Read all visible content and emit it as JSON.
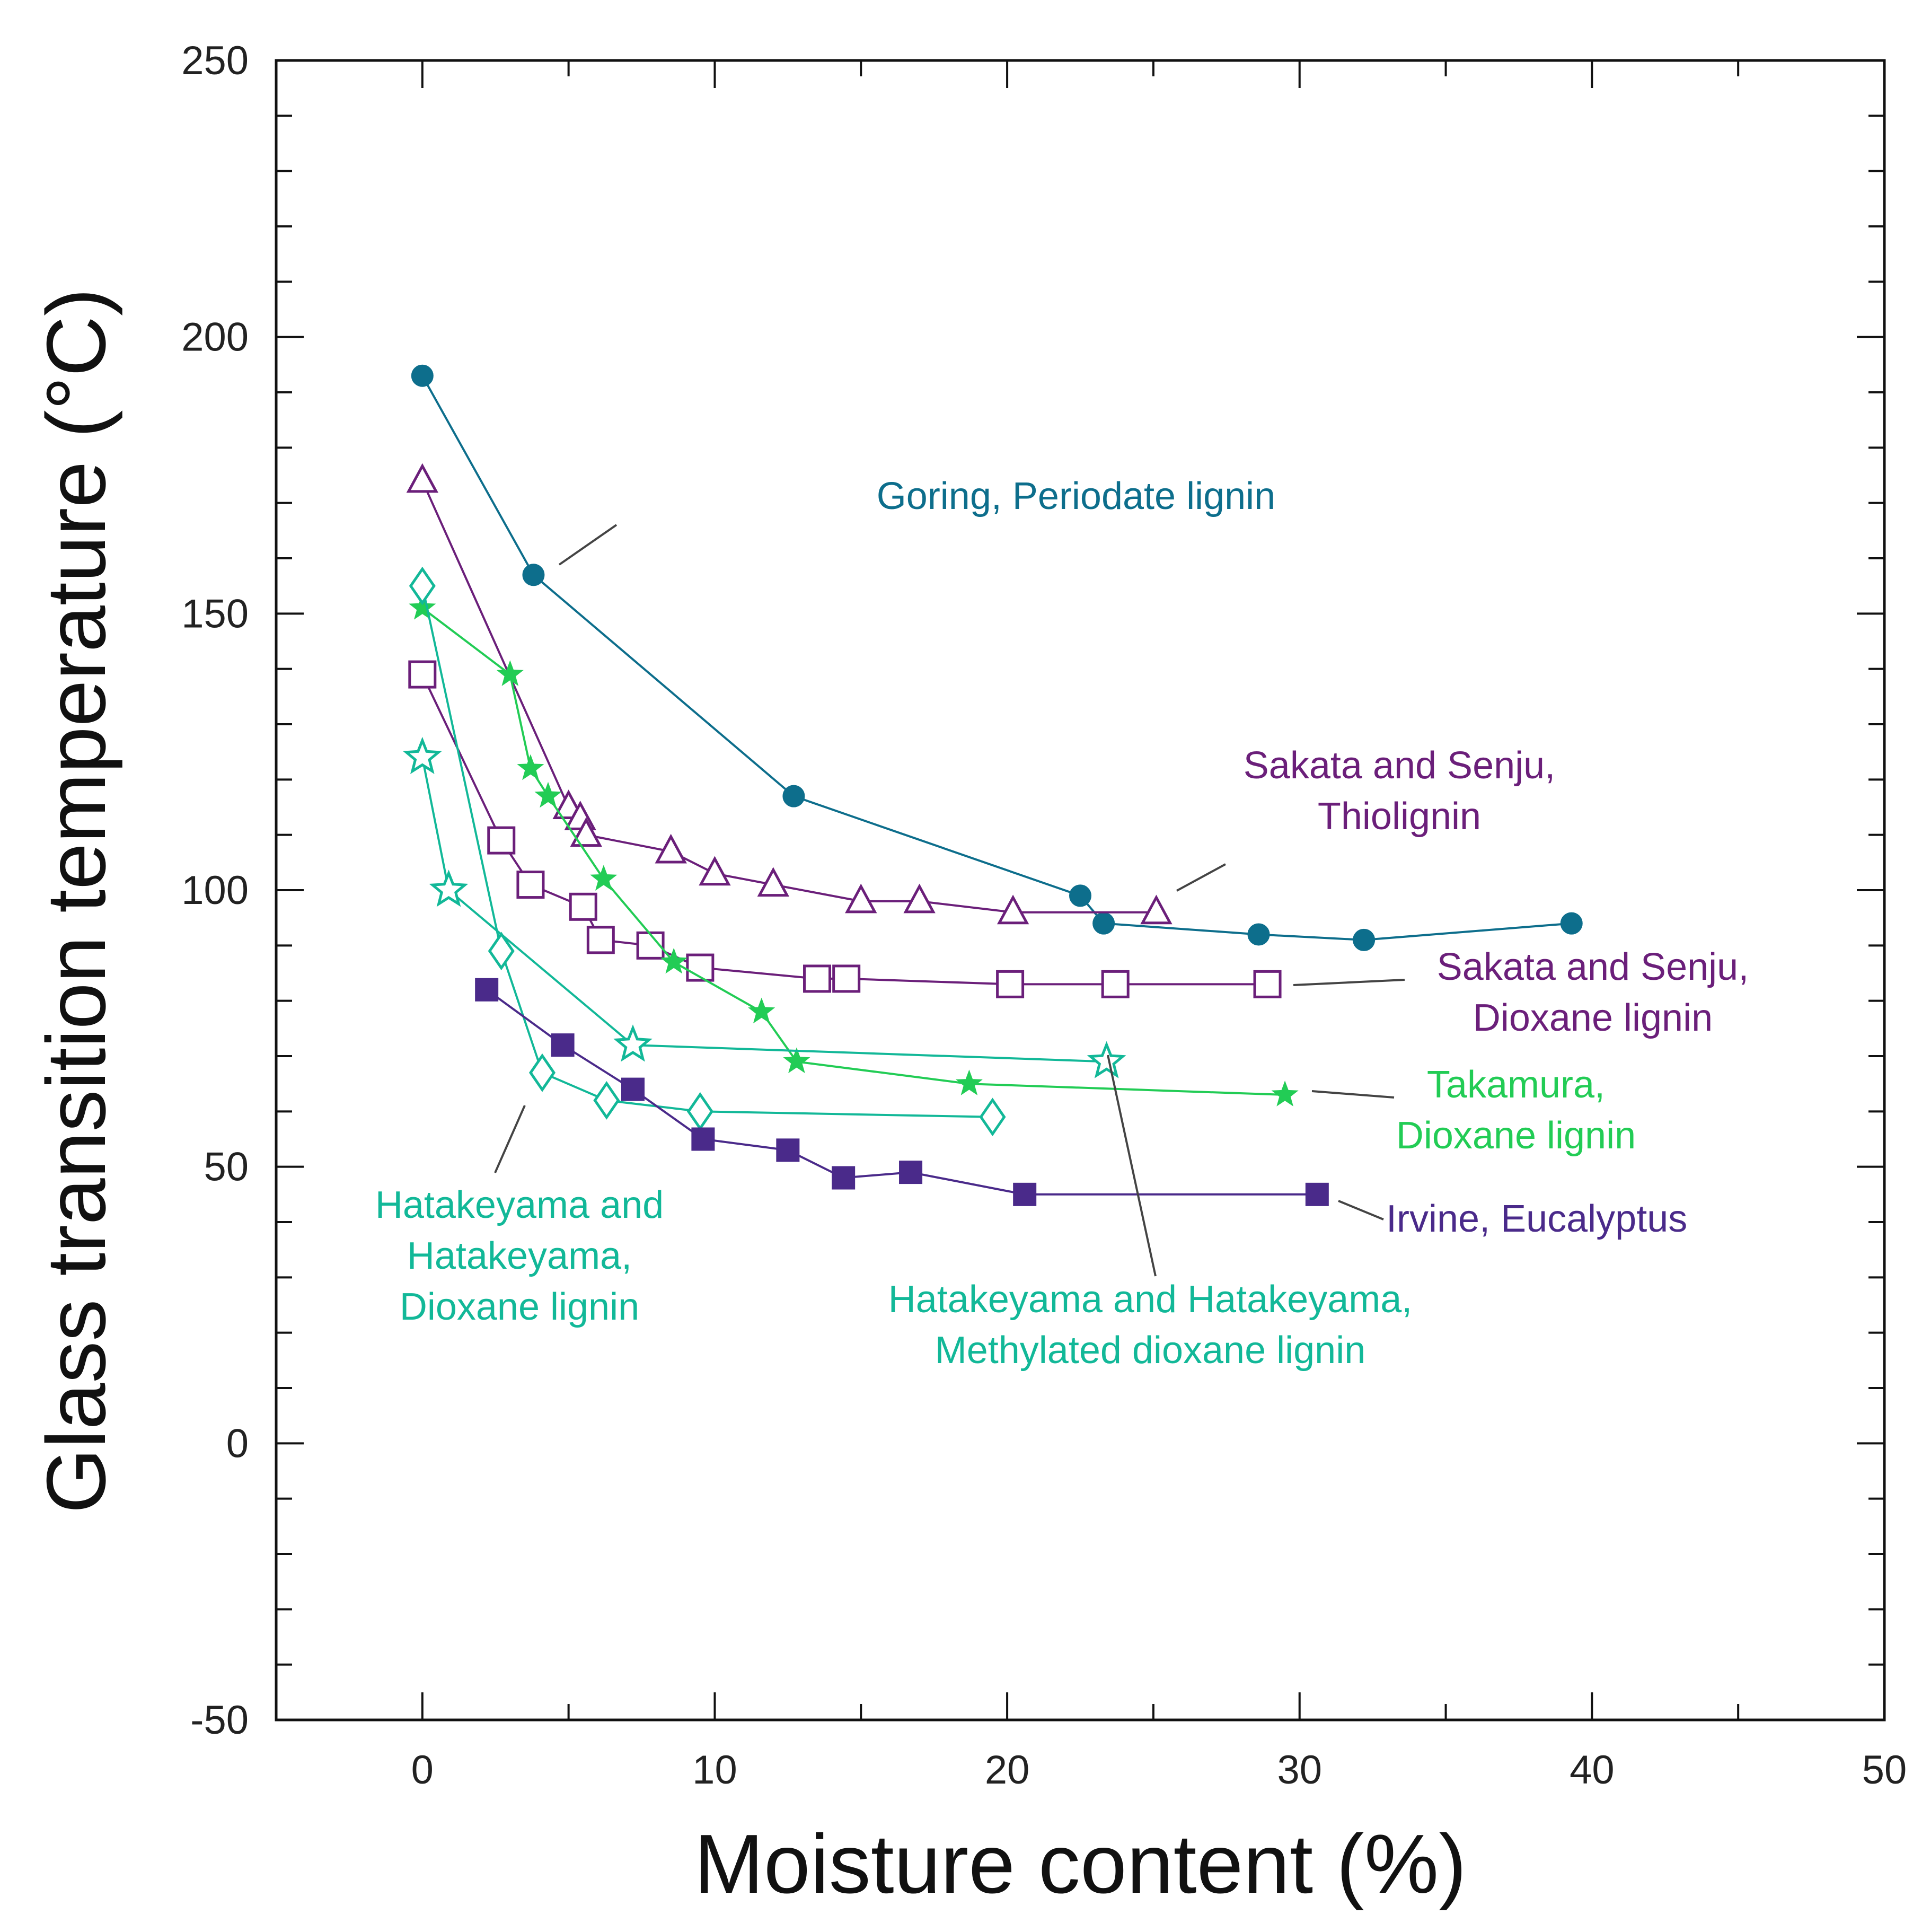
{
  "chart_data": {
    "type": "line",
    "title": "",
    "xlabel": "Moisture content (%)",
    "ylabel": "Glass transition temperature (°C)",
    "xlim": [
      -5,
      50
    ],
    "ylim": [
      -50,
      250
    ],
    "x_ticks": [
      "0",
      "10",
      "20",
      "30",
      "40",
      "50"
    ],
    "y_ticks": [
      "-50",
      "0",
      "50",
      "100",
      "150",
      "200",
      "250"
    ],
    "grid": false,
    "series": [
      {
        "name": "Goring, Periodate lignin",
        "label_lines": [
          "Goring, Periodate lignin"
        ],
        "color": "#0d6e8c",
        "marker": "filled-circle",
        "x": [
          0,
          3.8,
          12.7,
          22.5,
          23.3,
          28.6,
          32.2,
          39.3
        ],
        "y": [
          193,
          157,
          117,
          99,
          94,
          92,
          91,
          94
        ]
      },
      {
        "name": "Sakata and Senju, Thiolignin",
        "label_lines": [
          "Sakata and Senju,",
          "Thiolignin"
        ],
        "color": "#6b1f7a",
        "marker": "open-triangle",
        "x": [
          0,
          5,
          5.4,
          5.6,
          8.5,
          10,
          12,
          15,
          17,
          20.2,
          25.1
        ],
        "y": [
          174,
          115,
          113,
          110,
          107,
          103,
          101,
          98,
          98,
          96,
          96
        ]
      },
      {
        "name": "Sakata and Senju, Dioxane lignin",
        "label_lines": [
          "Sakata and Senju,",
          "Dioxane lignin"
        ],
        "color": "#6b1f7a",
        "marker": "open-square",
        "x": [
          0,
          2.7,
          3.7,
          5.5,
          6.1,
          7.8,
          9.5,
          13.5,
          14.5,
          20.1,
          23.7,
          28.9
        ],
        "y": [
          139,
          109,
          101,
          97,
          91,
          90,
          86,
          84,
          84,
          83,
          83,
          83
        ]
      },
      {
        "name": "Takamura, Dioxane lignin",
        "label_lines": [
          "Takamura,",
          "Dioxane lignin"
        ],
        "color": "#22cc55",
        "marker": "filled-star",
        "x": [
          0,
          3,
          3.7,
          4.3,
          6.2,
          8.6,
          11.6,
          12.8,
          18.7,
          29.5
        ],
        "y": [
          151,
          139,
          122,
          117,
          102,
          87,
          78,
          69,
          65,
          63
        ]
      },
      {
        "name": "Hatakeyama and Hatakeyama, Dioxane lignin",
        "label_lines": [
          "Hatakeyama and",
          "Hatakeyama,",
          "Dioxane lignin"
        ],
        "color": "#12b898",
        "marker": "open-diamond",
        "x": [
          0,
          2.7,
          4.1,
          6.3,
          9.5,
          19.5
        ],
        "y": [
          155,
          89,
          67,
          62,
          60,
          59
        ]
      },
      {
        "name": "Hatakeyama and Hatakeyama, Methylated dioxane lignin",
        "label_lines": [
          "Hatakeyama and Hatakeyama,",
          "Methylated dioxane lignin"
        ],
        "color": "#12b898",
        "marker": "open-star",
        "x": [
          0,
          0.9,
          7.2,
          23.4
        ],
        "y": [
          124,
          100,
          72,
          69
        ]
      },
      {
        "name": "Irvine, Eucalyptus",
        "label_lines": [
          "Irvine, Eucalyptus"
        ],
        "color": "#4a2a8a",
        "marker": "filled-square",
        "x": [
          2.2,
          4.8,
          7.2,
          9.6,
          12.5,
          14.4,
          16.7,
          20.6,
          30.6
        ],
        "y": [
          82,
          72,
          64,
          55,
          53,
          48,
          49,
          45,
          45
        ]
      }
    ]
  }
}
